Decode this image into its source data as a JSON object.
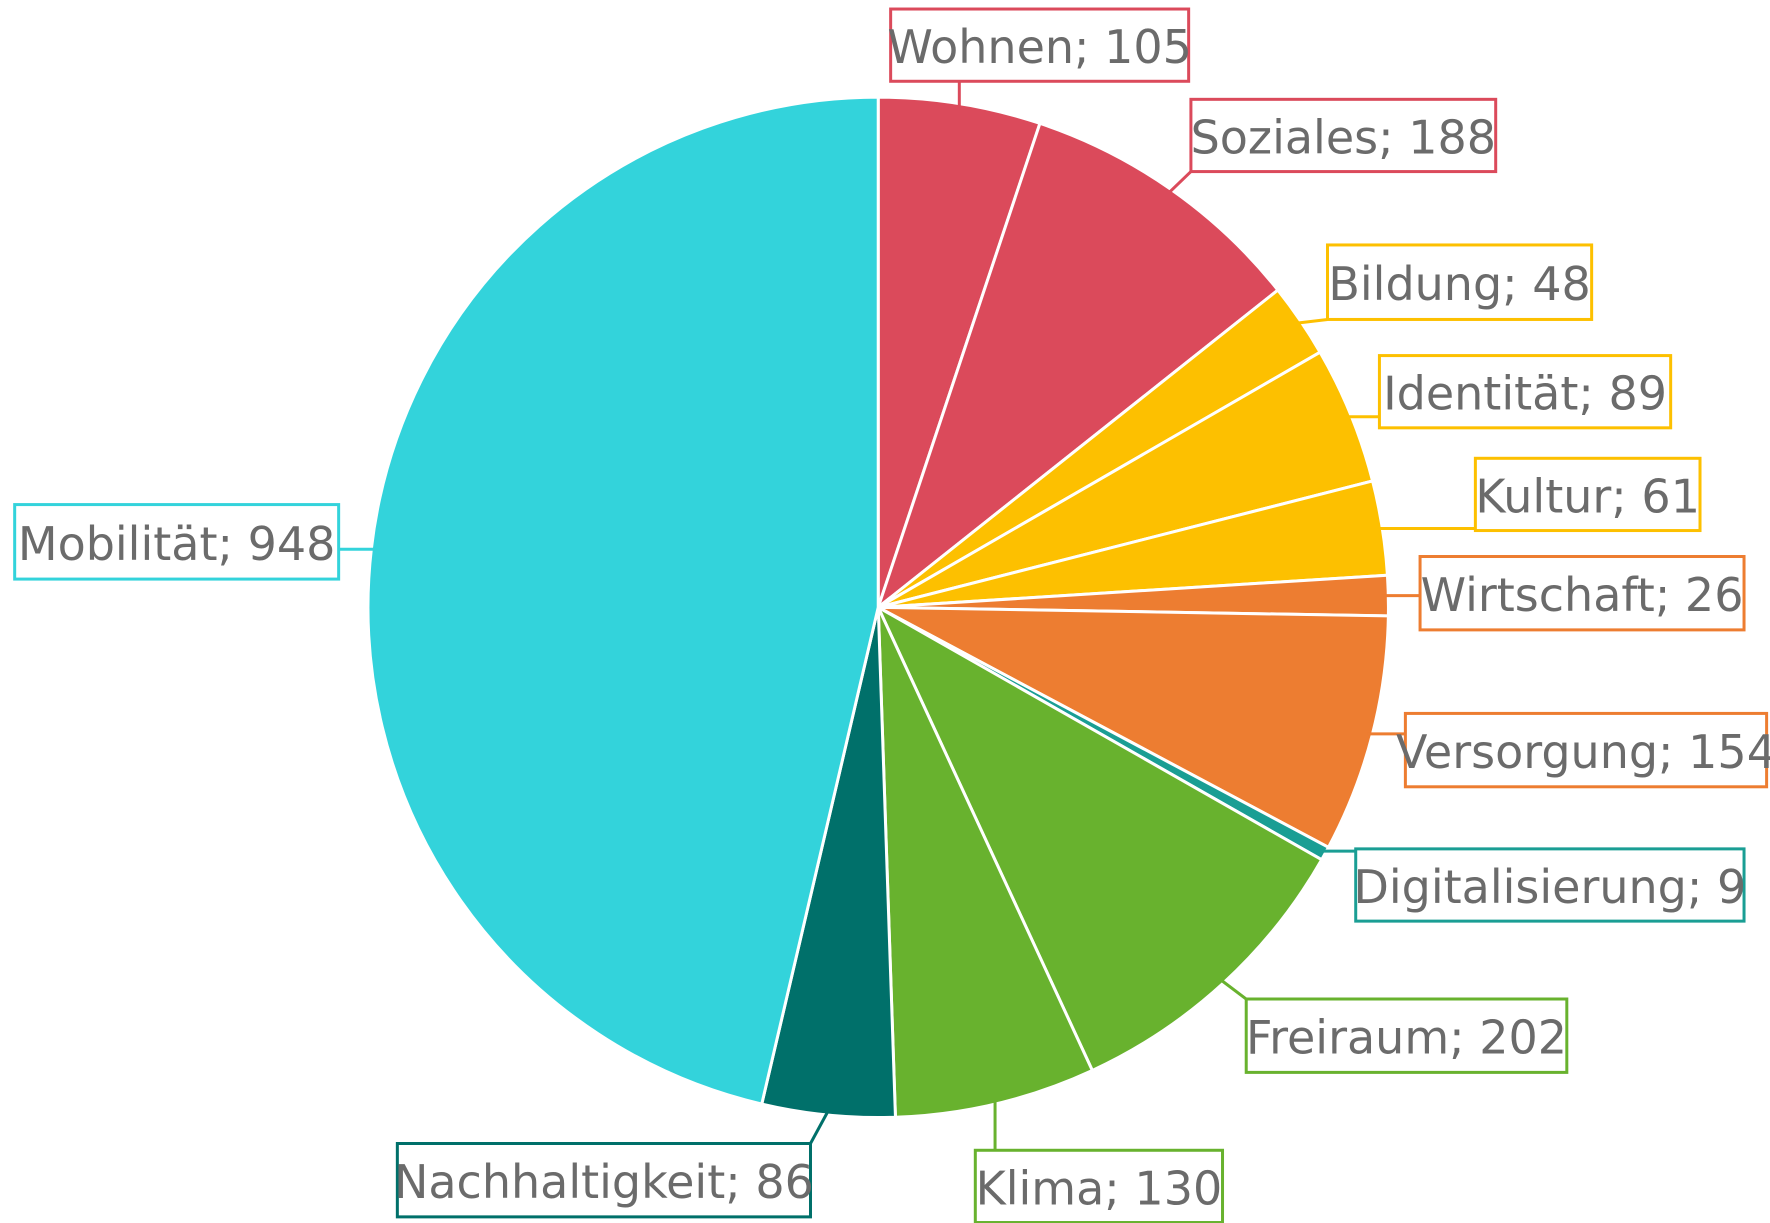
{
  "chart_data": {
    "type": "pie",
    "values": [
      105,
      188,
      48,
      89,
      61,
      26,
      154,
      9,
      202,
      130,
      86,
      948
    ],
    "value_labels": [
      "Wohnen; 105",
      "Soziales; 188",
      "Bildung; 48",
      "Identität; 89",
      "Kultur; 61",
      "Wirtschaft; 26",
      "Versorgung; 154",
      "Digitalisierung; 9",
      "Freiraum; 202",
      "Klima; 130",
      "Nachhaltigkeit; 86",
      "Mobilität; 948"
    ],
    "colors": [
      "#db4a5b",
      "#db4a5b",
      "#fdc000",
      "#fdc000",
      "#fdc000",
      "#ed7d31",
      "#ed7d31",
      "#1a9e94",
      "#68b22e",
      "#68b22e",
      "#00706a",
      "#33d3db"
    ]
  }
}
